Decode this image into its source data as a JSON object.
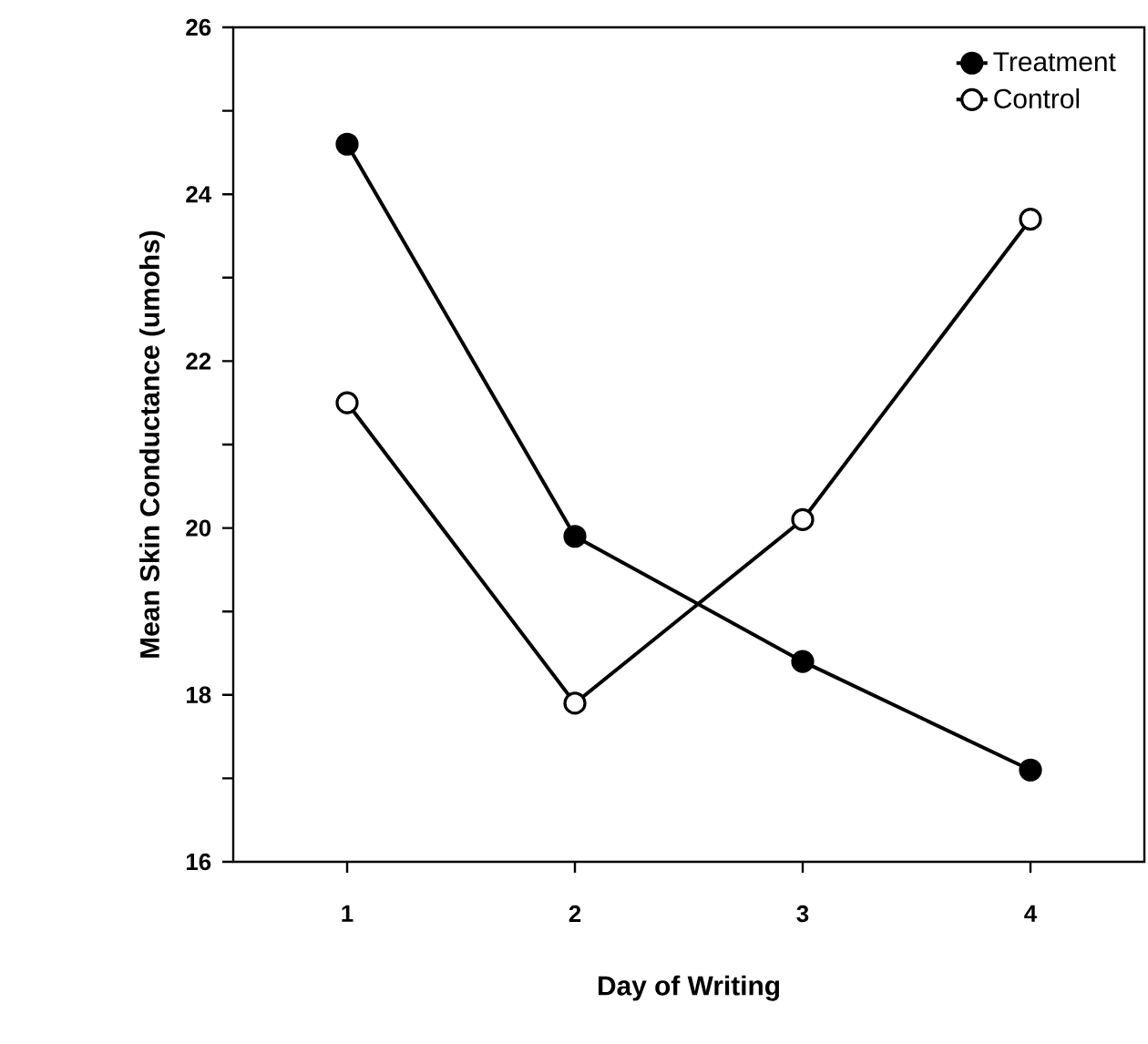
{
  "chart_data": {
    "type": "line",
    "xlabel": "Day of Writing",
    "ylabel": "Mean Skin Conductance (umohs)",
    "categories": [
      "1",
      "2",
      "3",
      "4"
    ],
    "series": [
      {
        "name": "Treatment",
        "color": "#000000",
        "values": [
          24.6,
          19.9,
          18.4,
          17.1
        ]
      },
      {
        "name": "Control",
        "color": "#000000",
        "values": [
          21.5,
          17.9,
          20.1,
          23.7
        ]
      }
    ],
    "ylim": [
      16,
      26
    ],
    "yticks": [
      16,
      {
        "value": 17,
        "label": null
      },
      18,
      {
        "value": 19,
        "label": null
      },
      20,
      {
        "value": 21,
        "label": null
      },
      22,
      {
        "value": 23,
        "label": null
      },
      24,
      {
        "value": 25,
        "label": null
      },
      26
    ],
    "grid": false,
    "legend": "top right",
    "marker": "circle",
    "line_style": "solid"
  }
}
